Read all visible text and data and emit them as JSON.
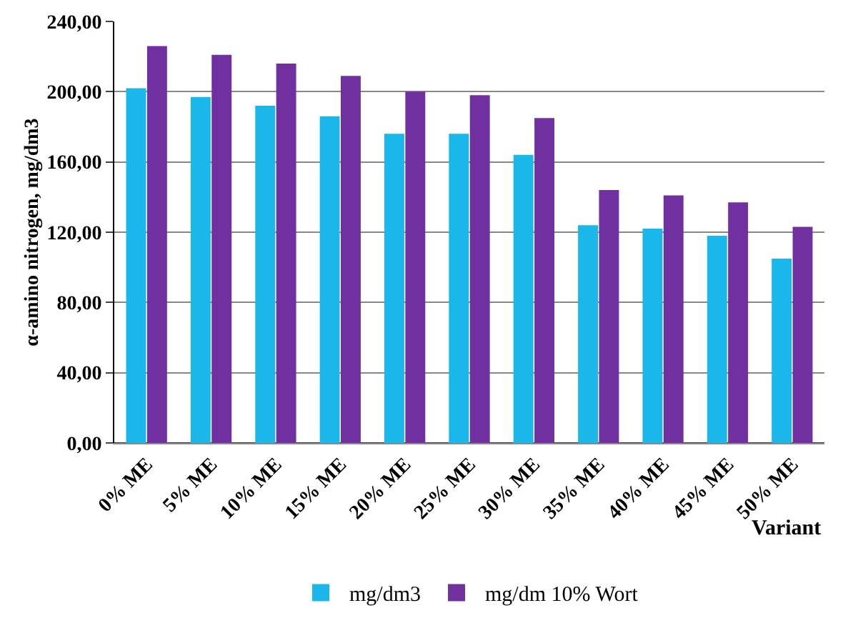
{
  "chart_data": {
    "type": "bar",
    "ylabel": "α-amino nitrogen, mg/dm3",
    "xlabel": "Variant",
    "categories": [
      "0% ME",
      "5% ME",
      "10% ME",
      "15% ME",
      "20% ME",
      "25% ME",
      "30% ME",
      "35% ME",
      "40% ME",
      "45% ME",
      "50% ME"
    ],
    "series": [
      {
        "name": "mg/dm3",
        "color": "#1ab8ea",
        "values": [
          202,
          197,
          192,
          186,
          176,
          176,
          164,
          124,
          122,
          118,
          105
        ]
      },
      {
        "name": "mg/dm 10% Wort",
        "color": "#7030a0",
        "values": [
          226,
          221,
          216,
          209,
          200,
          198,
          185,
          144,
          141,
          137,
          123
        ]
      }
    ],
    "ylim": [
      0,
      240
    ],
    "yticks": [
      {
        "value": 0,
        "label": "0,00"
      },
      {
        "value": 40,
        "label": "40,00"
      },
      {
        "value": 80,
        "label": "80,00"
      },
      {
        "value": 120,
        "label": "120,00"
      },
      {
        "value": 160,
        "label": "160,00"
      },
      {
        "value": 200,
        "label": "200,00"
      },
      {
        "value": 240,
        "label": "240,00"
      }
    ],
    "grid": "y",
    "legend": "bottom"
  }
}
